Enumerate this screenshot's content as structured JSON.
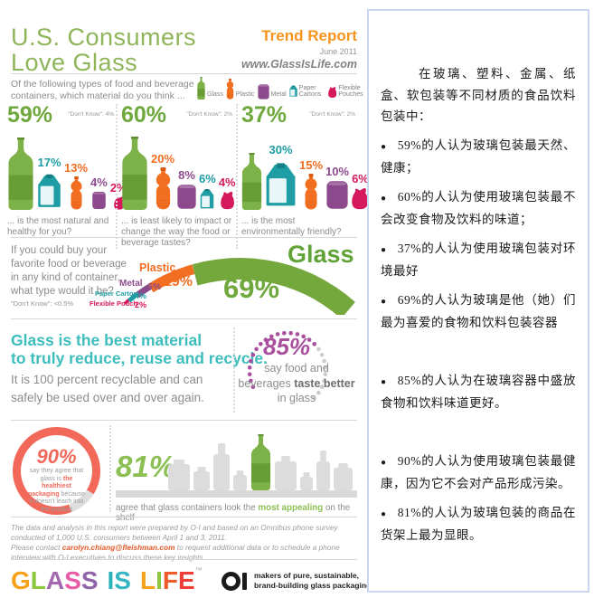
{
  "header": {
    "title_line1": "U.S. Consumers",
    "title_line2": "Love Glass",
    "report_label": "Trend Report",
    "report_date": "June 2011",
    "website": "www.GlassIsLife.com"
  },
  "container_colors": {
    "glass": "#74A83D",
    "plastic": "#F26E21",
    "metal": "#8C4A8C",
    "carton": "#1E9EA4",
    "pouch": "#D6185C"
  },
  "colors": {
    "accent_green": "#6FA83C",
    "title_green": "#8FB45A",
    "orange": "#F7941E",
    "teal_heading": "#3EBDBD",
    "purple_85": "#A8509E",
    "salmon_90": "#F2695A",
    "green_81": "#8CC054",
    "gray_text": "#8A8C8E",
    "border_blue": "#C9D6F0"
  },
  "legend": {
    "question": "Of the following types of food and beverage containers, which material do you think ...",
    "items": [
      {
        "type": "glass",
        "label": "Glass"
      },
      {
        "type": "plastic",
        "label": "Plastic"
      },
      {
        "type": "metal",
        "label": "Metal"
      },
      {
        "type": "carton",
        "label": "Paper Cartons"
      },
      {
        "type": "pouch",
        "label": "Flexible Pouches"
      }
    ]
  },
  "chart_data": [
    {
      "type": "bar",
      "unit": "%",
      "pct_label": "59%",
      "dont_know": "\"Don't Know\": 4%",
      "caption": "... is the most natural and healthy for you?",
      "categories": [
        "Glass",
        "Paper Cartons",
        "Plastic",
        "Metal",
        "Flexible Pouches"
      ],
      "container_types": [
        "glass",
        "carton",
        "plastic",
        "metal",
        "pouch"
      ],
      "values": [
        59,
        17,
        13,
        4,
        2
      ]
    },
    {
      "type": "bar",
      "unit": "%",
      "pct_label": "60%",
      "dont_know": "\"Don't Know\": 2%",
      "caption": "... is least likely to impact or change the way the food or beverage tastes?",
      "categories": [
        "Glass",
        "Plastic",
        "Metal",
        "Paper Cartons",
        "Flexible Pouches"
      ],
      "container_types": [
        "glass",
        "plastic",
        "metal",
        "carton",
        "pouch"
      ],
      "values": [
        60,
        20,
        8,
        6,
        4
      ]
    },
    {
      "type": "bar",
      "unit": "%",
      "pct_label": "37%",
      "dont_know": "\"Don't Know\": 2%",
      "caption": "... is the most environmentally friendly?",
      "categories": [
        "Glass",
        "Paper Cartons",
        "Plastic",
        "Metal",
        "Flexible Pouches"
      ],
      "container_types": [
        "glass",
        "carton",
        "plastic",
        "metal",
        "pouch"
      ],
      "values": [
        37,
        30,
        15,
        10,
        6
      ]
    },
    {
      "type": "pie",
      "style": "tapered-arc",
      "question": "If you could buy your favorite food or beverage in any kind of container, what type would it be?",
      "dont_know": "\"Don't Know\": <0.5%",
      "segments": [
        {
          "label": "Glass",
          "seg_type": "glass",
          "value": 69,
          "value_label": "69%"
        },
        {
          "label": "Plastic",
          "seg_type": "plastic",
          "value": 19,
          "value_label": "19%"
        },
        {
          "label": "Metal",
          "seg_type": "metal",
          "value": 6,
          "value_label": "6%"
        },
        {
          "label": "Paper Carton",
          "seg_type": "carton",
          "value": 4,
          "value_label": "4%"
        },
        {
          "label": "Flexible Pouch",
          "seg_type": "pouch",
          "value": 2,
          "value_label": "2%"
        }
      ]
    }
  ],
  "recycle": {
    "heading_line1": "Glass is the best material",
    "heading_line2": "to truly reduce, reuse and recycle.",
    "body": "It is 100 percent recyclable and can safely be used over and over again."
  },
  "stat85": {
    "value": "85%",
    "text_pre": "say food and beverages ",
    "text_bold": "taste better",
    "text_post": " in glass"
  },
  "stat90": {
    "value": "90%",
    "text_pre": "say they agree that glass is ",
    "text_bold": "the healthiest packaging",
    "text_post": " because it doesn't leach into the product"
  },
  "stat81": {
    "value": "81%",
    "caption_pre": "agree that glass containers look the ",
    "caption_bold": "most appealing",
    "caption_post": " on the shelf"
  },
  "footer": {
    "p1": "The data and analysis in this report were prepared by O-I and based on an Omnibus phone survey conducted of 1,000 U.S. consumers between April 1 and 3, 2011.",
    "p2_pre": "Please contact ",
    "p2_email": "carolyn.chiang@fleishman.com",
    "p2_post": " to request additional data or to schedule a phone interview with O-I executives to discuss these key insights."
  },
  "brand": {
    "letters": [
      {
        "ch": "G",
        "color": "#F7A11A"
      },
      {
        "ch": "L",
        "color": "#8DC63F"
      },
      {
        "ch": "A",
        "color": "#A468AE"
      },
      {
        "ch": "S",
        "color": "#E85BA7"
      },
      {
        "ch": "S",
        "color": "#9163A8"
      },
      {
        "ch": " ",
        "color": "#000000"
      },
      {
        "ch": "I",
        "color": "#2CB3B8"
      },
      {
        "ch": "S",
        "color": "#35B5C1"
      },
      {
        "ch": " ",
        "color": "#000000"
      },
      {
        "ch": "L",
        "color": "#F7A11A"
      },
      {
        "ch": "I",
        "color": "#8DC63F"
      },
      {
        "ch": "F",
        "color": "#F05A28"
      },
      {
        "ch": "E",
        "color": "#EF3E36"
      }
    ],
    "tm": "™",
    "oi_line1": "makers of pure, sustainable,",
    "oi_line2": "brand-building glass packaging"
  },
  "translation": {
    "intro": "在玻璃、塑料、金属、纸盒、软包装等不同材质的食品饮料包装中：",
    "bullets": [
      {
        "text": "59%的人认为玻璃包装最天然、健康；",
        "gap": false
      },
      {
        "text": "60%的人认为使用玻璃包装最不会改变食物及饮料的味道；",
        "gap": false
      },
      {
        "text": "37%的人认为使用玻璃包装对环境最好",
        "gap": false
      },
      {
        "text": "69%的人认为玻璃是他（她）们最为喜爱的食物和饮料包装容器",
        "gap": false
      },
      {
        "text": "85%的人认为在玻璃容器中盛放食物和饮料味道更好。",
        "gap": true
      },
      {
        "text": "90%的人认为使用玻璃包装最健康，因为它不会对产品形成污染。",
        "gap": true
      },
      {
        "text": "81%的人认为玻璃包装的商品在货架上最为显眼。",
        "gap": false
      }
    ]
  }
}
